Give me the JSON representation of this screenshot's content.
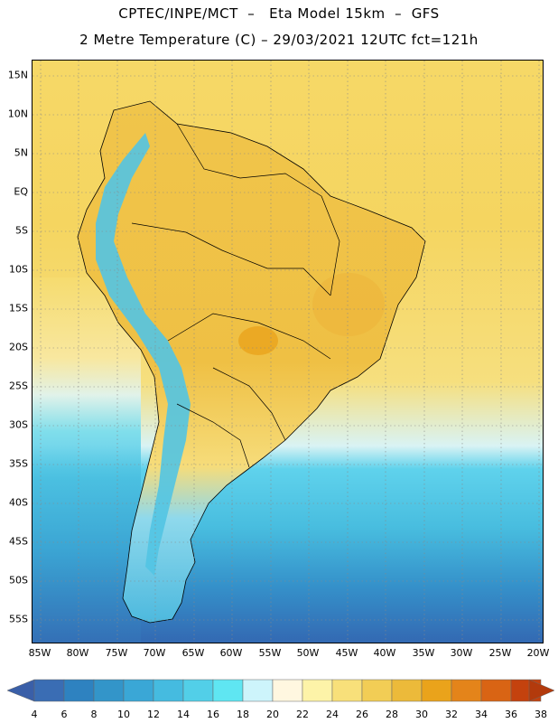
{
  "title_line1": "CPTEC/INPE/MCT  –   Eta Model 15km  –  GFS",
  "title_line2": "2 Metre Temperature (C) – 29/03/2021 12UTC fct=121h",
  "lat_labels": [
    "15N",
    "10N",
    "5N",
    "EQ",
    "5S",
    "10S",
    "15S",
    "20S",
    "25S",
    "30S",
    "35S",
    "40S",
    "45S",
    "50S",
    "55S"
  ],
  "lon_labels": [
    "85W",
    "80W",
    "75W",
    "70W",
    "65W",
    "60W",
    "55W",
    "50W",
    "45W",
    "40W",
    "35W",
    "30W",
    "25W",
    "20W"
  ],
  "colorbar": {
    "labels": [
      "4",
      "6",
      "8",
      "10",
      "12",
      "14",
      "16",
      "18",
      "20",
      "22",
      "24",
      "26",
      "28",
      "30",
      "32",
      "34",
      "36",
      "38"
    ],
    "colors": [
      "#3a6db4",
      "#2e82c0",
      "#3395c9",
      "#3aa7d6",
      "#45bbe0",
      "#52cfe8",
      "#5fe6f2",
      "#cdf4fb",
      "#fff7e0",
      "#fdf3a8",
      "#f8e07a",
      "#f2cd55",
      "#ecba3a",
      "#eaa31b",
      "#e4841a",
      "#d96414",
      "#c4420e"
    ]
  },
  "map": {
    "land_warm": "#f2c54e",
    "ocean_tropical": "#f4d25e",
    "ocean_cool": "#4ec3e3",
    "ocean_cold": "#3a78bf"
  }
}
